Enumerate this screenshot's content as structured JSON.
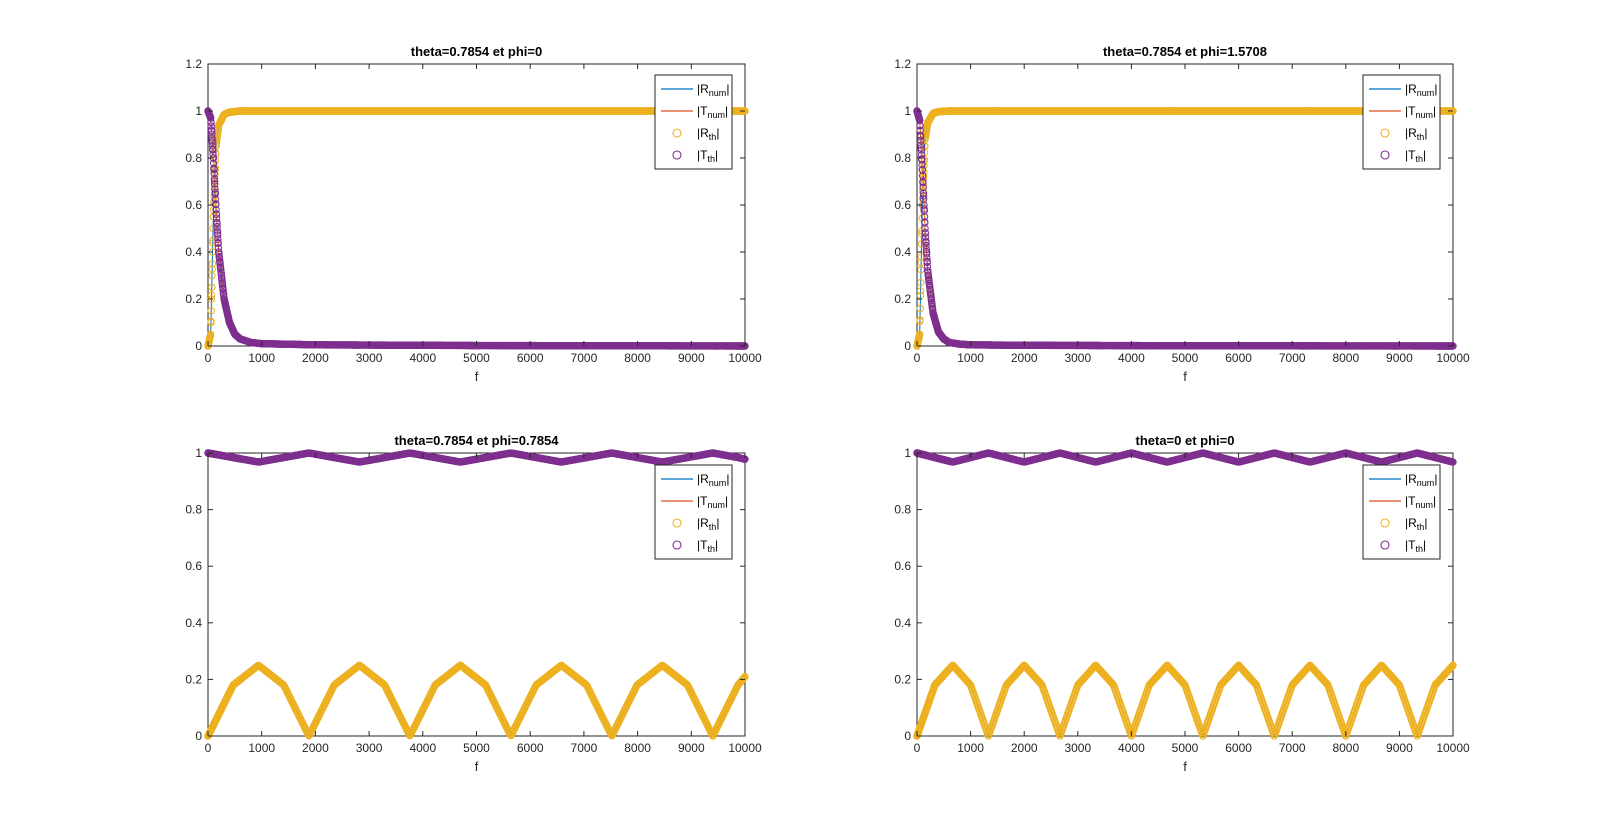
{
  "figure": {
    "background": "#ffffff"
  },
  "legend": {
    "entries": [
      {
        "key": "Rnum",
        "base": "|R",
        "sub": "num",
        "close": "|",
        "style": "line",
        "color": "#0072BD"
      },
      {
        "key": "Tnum",
        "base": "|T",
        "sub": "num",
        "close": "|",
        "style": "line",
        "color": "#D95319"
      },
      {
        "key": "Rth",
        "base": "|R",
        "sub": "th",
        "close": "|",
        "style": "circle",
        "color": "#EDB120"
      },
      {
        "key": "Tth",
        "base": "|T",
        "sub": "th",
        "close": "|",
        "style": "circle",
        "color": "#7E2F8E"
      }
    ]
  },
  "chart_data": [
    {
      "type": "line",
      "title": "theta=0.7854 et phi=0",
      "xlabel": "f",
      "ylabel": "",
      "xlim": [
        0,
        10000
      ],
      "ylim": [
        0,
        1.2
      ],
      "xticks": [
        0,
        1000,
        2000,
        3000,
        4000,
        5000,
        6000,
        7000,
        8000,
        9000,
        10000
      ],
      "yticks": [
        0,
        0.2,
        0.4,
        0.6,
        0.8,
        1,
        1.2
      ],
      "yticklabels": [
        "0",
        "0.2",
        "0.4",
        "0.6",
        "0.8",
        "1",
        "1.2"
      ],
      "legend_position": "top-right",
      "grid": false,
      "series": [
        {
          "name": "|Rnum|",
          "style": "line",
          "color": "#0072BD",
          "x": [
            0,
            50,
            100,
            150,
            200,
            300,
            400,
            600,
            1000,
            2000,
            5000,
            10000
          ],
          "y": [
            0,
            0.05,
            0.55,
            0.85,
            0.94,
            0.985,
            0.995,
            1.0,
            1.0,
            1.0,
            1.0,
            1.0
          ]
        },
        {
          "name": "|Tnum|",
          "style": "line",
          "color": "#D95319",
          "x": [
            0,
            50,
            100,
            150,
            200,
            300,
            400,
            500,
            600,
            800,
            1000,
            2000,
            5000,
            10000
          ],
          "y": [
            1.0,
            0.97,
            0.8,
            0.58,
            0.4,
            0.2,
            0.1,
            0.05,
            0.03,
            0.015,
            0.01,
            0.005,
            0.002,
            0.0
          ]
        },
        {
          "name": "|Rth|",
          "style": "circle",
          "color": "#EDB120",
          "x": [
            0,
            50,
            100,
            150,
            200,
            300,
            400,
            600,
            1000,
            2000,
            5000,
            10000
          ],
          "y": [
            0,
            0.05,
            0.55,
            0.85,
            0.94,
            0.985,
            0.995,
            1.0,
            1.0,
            1.0,
            1.0,
            1.0
          ]
        },
        {
          "name": "|Tth|",
          "style": "circle",
          "color": "#7E2F8E",
          "x": [
            0,
            50,
            100,
            150,
            200,
            300,
            400,
            500,
            600,
            800,
            1000,
            2000,
            5000,
            10000
          ],
          "y": [
            1.0,
            0.97,
            0.8,
            0.58,
            0.4,
            0.2,
            0.1,
            0.05,
            0.03,
            0.015,
            0.01,
            0.005,
            0.002,
            0.0
          ]
        }
      ]
    },
    {
      "type": "line",
      "title": "theta=0.7854 et phi=1.5708",
      "xlabel": "f",
      "ylabel": "",
      "xlim": [
        0,
        10000
      ],
      "ylim": [
        0,
        1.2
      ],
      "xticks": [
        0,
        1000,
        2000,
        3000,
        4000,
        5000,
        6000,
        7000,
        8000,
        9000,
        10000
      ],
      "yticks": [
        0,
        0.2,
        0.4,
        0.6,
        0.8,
        1,
        1.2
      ],
      "yticklabels": [
        "0",
        "0.2",
        "0.4",
        "0.6",
        "0.8",
        "1",
        "1.2"
      ],
      "legend_position": "top-right",
      "grid": false,
      "series": [
        {
          "name": "|Rnum|",
          "style": "line",
          "color": "#0072BD",
          "x": [
            0,
            50,
            100,
            150,
            200,
            300,
            400,
            600,
            1000,
            2000,
            5000,
            10000
          ],
          "y": [
            0,
            0.05,
            0.6,
            0.88,
            0.95,
            0.99,
            0.997,
            1.0,
            1.0,
            1.0,
            1.0,
            1.0
          ]
        },
        {
          "name": "|Tnum|",
          "style": "line",
          "color": "#D95319",
          "x": [
            0,
            50,
            100,
            150,
            200,
            300,
            400,
            500,
            600,
            800,
            1000,
            2000,
            5000,
            10000
          ],
          "y": [
            1.0,
            0.96,
            0.75,
            0.5,
            0.32,
            0.14,
            0.06,
            0.03,
            0.015,
            0.008,
            0.005,
            0.003,
            0.001,
            0.0
          ]
        },
        {
          "name": "|Rth|",
          "style": "circle",
          "color": "#EDB120",
          "x": [
            0,
            50,
            100,
            150,
            200,
            300,
            400,
            600,
            1000,
            2000,
            5000,
            10000
          ],
          "y": [
            0,
            0.05,
            0.6,
            0.88,
            0.95,
            0.99,
            0.997,
            1.0,
            1.0,
            1.0,
            1.0,
            1.0
          ]
        },
        {
          "name": "|Tth|",
          "style": "circle",
          "color": "#7E2F8E",
          "x": [
            0,
            50,
            100,
            150,
            200,
            300,
            400,
            500,
            600,
            800,
            1000,
            2000,
            5000,
            10000
          ],
          "y": [
            1.0,
            0.96,
            0.75,
            0.5,
            0.32,
            0.14,
            0.06,
            0.03,
            0.015,
            0.008,
            0.005,
            0.003,
            0.001,
            0.0
          ]
        }
      ]
    },
    {
      "type": "line",
      "title": "theta=0.7854 et phi=0.7854",
      "xlabel": "f",
      "ylabel": "",
      "xlim": [
        0,
        10000
      ],
      "ylim": [
        0,
        1
      ],
      "xticks": [
        0,
        1000,
        2000,
        3000,
        4000,
        5000,
        6000,
        7000,
        8000,
        9000,
        10000
      ],
      "yticks": [
        0,
        0.2,
        0.4,
        0.6,
        0.8,
        1
      ],
      "yticklabels": [
        "0",
        "0.2",
        "0.4",
        "0.6",
        "0.8",
        "1"
      ],
      "legend_position": "top-right",
      "grid": false,
      "series": [
        {
          "name": "|Rnum|",
          "style": "line",
          "color": "#0072BD",
          "x": [
            0,
            470,
            940,
            1410,
            1880,
            2350,
            2820,
            3290,
            3760,
            4230,
            4700,
            5170,
            5640,
            6110,
            6580,
            7050,
            7520,
            7990,
            8460,
            8930,
            9400,
            9870,
            10000
          ],
          "y": [
            0,
            0.18,
            0.25,
            0.18,
            0,
            0.18,
            0.25,
            0.18,
            0,
            0.18,
            0.25,
            0.18,
            0,
            0.18,
            0.25,
            0.18,
            0,
            0.18,
            0.25,
            0.18,
            0,
            0.18,
            0.21
          ]
        },
        {
          "name": "|Tnum|",
          "style": "line",
          "color": "#D95319",
          "x": [
            0,
            470,
            940,
            1410,
            1880,
            2350,
            2820,
            3290,
            3760,
            4230,
            4700,
            5170,
            5640,
            6110,
            6580,
            7050,
            7520,
            7990,
            8460,
            8930,
            9400,
            9870,
            10000
          ],
          "y": [
            1.0,
            0.984,
            0.968,
            0.984,
            1.0,
            0.984,
            0.968,
            0.984,
            1.0,
            0.984,
            0.968,
            0.984,
            1.0,
            0.984,
            0.968,
            0.984,
            1.0,
            0.984,
            0.968,
            0.984,
            1.0,
            0.984,
            0.978
          ]
        },
        {
          "name": "|Rth|",
          "style": "circle",
          "color": "#EDB120",
          "x": [
            0,
            470,
            940,
            1410,
            1880,
            2350,
            2820,
            3290,
            3760,
            4230,
            4700,
            5170,
            5640,
            6110,
            6580,
            7050,
            7520,
            7990,
            8460,
            8930,
            9400,
            9870,
            10000
          ],
          "y": [
            0,
            0.18,
            0.25,
            0.18,
            0,
            0.18,
            0.25,
            0.18,
            0,
            0.18,
            0.25,
            0.18,
            0,
            0.18,
            0.25,
            0.18,
            0,
            0.18,
            0.25,
            0.18,
            0,
            0.18,
            0.21
          ]
        },
        {
          "name": "|Tth|",
          "style": "circle",
          "color": "#7E2F8E",
          "x": [
            0,
            470,
            940,
            1410,
            1880,
            2350,
            2820,
            3290,
            3760,
            4230,
            4700,
            5170,
            5640,
            6110,
            6580,
            7050,
            7520,
            7990,
            8460,
            8930,
            9400,
            9870,
            10000
          ],
          "y": [
            1.0,
            0.984,
            0.968,
            0.984,
            1.0,
            0.984,
            0.968,
            0.984,
            1.0,
            0.984,
            0.968,
            0.984,
            1.0,
            0.984,
            0.968,
            0.984,
            1.0,
            0.984,
            0.968,
            0.984,
            1.0,
            0.984,
            0.978
          ]
        }
      ]
    },
    {
      "type": "line",
      "title": "theta=0 et phi=0",
      "xlabel": "f",
      "ylabel": "",
      "xlim": [
        0,
        10000
      ],
      "ylim": [
        0,
        1
      ],
      "xticks": [
        0,
        1000,
        2000,
        3000,
        4000,
        5000,
        6000,
        7000,
        8000,
        9000,
        10000
      ],
      "yticks": [
        0,
        0.2,
        0.4,
        0.6,
        0.8,
        1
      ],
      "yticklabels": [
        "0",
        "0.2",
        "0.4",
        "0.6",
        "0.8",
        "1"
      ],
      "legend_position": "top-right",
      "grid": false,
      "series": [
        {
          "name": "|Rnum|",
          "style": "line",
          "color": "#0072BD",
          "x": [
            0,
            333,
            667,
            1000,
            1333,
            1667,
            2000,
            2333,
            2667,
            3000,
            3333,
            3667,
            4000,
            4333,
            4667,
            5000,
            5333,
            5667,
            6000,
            6333,
            6667,
            7000,
            7333,
            7667,
            8000,
            8333,
            8667,
            9000,
            9333,
            9667,
            10000
          ],
          "y": [
            0,
            0.18,
            0.25,
            0.18,
            0,
            0.18,
            0.25,
            0.18,
            0,
            0.18,
            0.25,
            0.18,
            0,
            0.18,
            0.25,
            0.18,
            0,
            0.18,
            0.25,
            0.18,
            0,
            0.18,
            0.25,
            0.18,
            0,
            0.18,
            0.25,
            0.18,
            0,
            0.18,
            0.25
          ]
        },
        {
          "name": "|Tnum|",
          "style": "line",
          "color": "#D95319",
          "x": [
            0,
            333,
            667,
            1000,
            1333,
            1667,
            2000,
            2333,
            2667,
            3000,
            3333,
            3667,
            4000,
            4333,
            4667,
            5000,
            5333,
            5667,
            6000,
            6333,
            6667,
            7000,
            7333,
            7667,
            8000,
            8333,
            8667,
            9000,
            9333,
            9667,
            10000
          ],
          "y": [
            1.0,
            0.984,
            0.968,
            0.984,
            1.0,
            0.984,
            0.968,
            0.984,
            1.0,
            0.984,
            0.968,
            0.984,
            1.0,
            0.984,
            0.968,
            0.984,
            1.0,
            0.984,
            0.968,
            0.984,
            1.0,
            0.984,
            0.968,
            0.984,
            1.0,
            0.984,
            0.968,
            0.984,
            1.0,
            0.984,
            0.968
          ]
        },
        {
          "name": "|Rth|",
          "style": "circle",
          "color": "#EDB120",
          "x": [
            0,
            333,
            667,
            1000,
            1333,
            1667,
            2000,
            2333,
            2667,
            3000,
            3333,
            3667,
            4000,
            4333,
            4667,
            5000,
            5333,
            5667,
            6000,
            6333,
            6667,
            7000,
            7333,
            7667,
            8000,
            8333,
            8667,
            9000,
            9333,
            9667,
            10000
          ],
          "y": [
            0,
            0.18,
            0.25,
            0.18,
            0,
            0.18,
            0.25,
            0.18,
            0,
            0.18,
            0.25,
            0.18,
            0,
            0.18,
            0.25,
            0.18,
            0,
            0.18,
            0.25,
            0.18,
            0,
            0.18,
            0.25,
            0.18,
            0,
            0.18,
            0.25,
            0.18,
            0,
            0.18,
            0.25
          ]
        },
        {
          "name": "|Tth|",
          "style": "circle",
          "color": "#7E2F8E",
          "x": [
            0,
            333,
            667,
            1000,
            1333,
            1667,
            2000,
            2333,
            2667,
            3000,
            3333,
            3667,
            4000,
            4333,
            4667,
            5000,
            5333,
            5667,
            6000,
            6333,
            6667,
            7000,
            7333,
            7667,
            8000,
            8333,
            8667,
            9000,
            9333,
            9667,
            10000
          ],
          "y": [
            1.0,
            0.984,
            0.968,
            0.984,
            1.0,
            0.984,
            0.968,
            0.984,
            1.0,
            0.984,
            0.968,
            0.984,
            1.0,
            0.984,
            0.968,
            0.984,
            1.0,
            0.984,
            0.968,
            0.984,
            1.0,
            0.984,
            0.968,
            0.984,
            1.0,
            0.984,
            0.968,
            0.984,
            1.0,
            0.984,
            0.968
          ]
        }
      ]
    }
  ]
}
